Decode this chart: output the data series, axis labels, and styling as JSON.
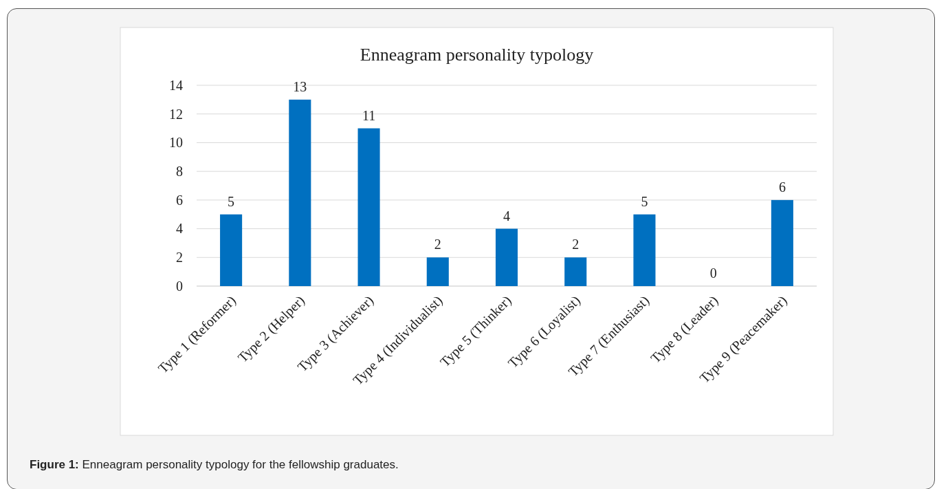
{
  "chart_data": {
    "type": "bar",
    "title": "Enneagram personality typology",
    "categories": [
      "Type 1 (Reformer)",
      "Type 2 (Helper)",
      "Type 3 (Achiever)",
      "Type 4 (Individualist)",
      "Type 5 (Thinker)",
      "Type 6 (Loyalist)",
      "Type 7 (Enthusiast)",
      "Type 8 (Leader)",
      "Type 9 (Peacemaker)"
    ],
    "values": [
      5,
      13,
      11,
      2,
      4,
      2,
      5,
      0,
      6
    ],
    "color": "#0070c0",
    "ylim": [
      0,
      14
    ],
    "yticks": [
      0,
      2,
      4,
      6,
      8,
      10,
      12,
      14
    ],
    "grid": "y",
    "data_labels": true,
    "annotations": [
      "Figure 1: Enneagram personality typology for the fellowship graduates."
    ]
  }
}
